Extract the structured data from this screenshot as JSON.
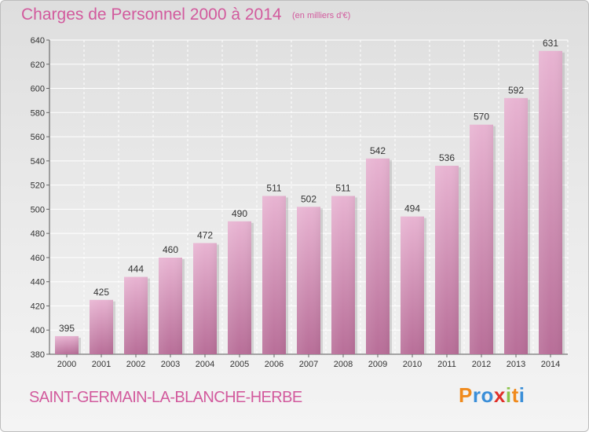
{
  "chart_data": {
    "type": "bar",
    "title": "Charges de Personnel 2000 à 2014",
    "subtitle": "(en milliers d'€)",
    "categories": [
      "2000",
      "2001",
      "2002",
      "2003",
      "2004",
      "2005",
      "2006",
      "2007",
      "2008",
      "2009",
      "2010",
      "2011",
      "2012",
      "2013",
      "2014"
    ],
    "values": [
      395,
      425,
      444,
      460,
      472,
      490,
      511,
      502,
      511,
      542,
      494,
      536,
      570,
      592,
      631
    ],
    "ylim": [
      380,
      640
    ],
    "yticks": [
      380,
      400,
      420,
      440,
      460,
      480,
      500,
      520,
      540,
      560,
      580,
      600,
      620,
      640
    ],
    "grid": true,
    "bar_color": "#d890b8"
  },
  "footer": {
    "commune": "SAINT-GERMAIN-LA-BLANCHE-HERBE",
    "logo_letters": [
      "P",
      "r",
      "o",
      "x",
      "i",
      "t",
      "i"
    ],
    "logo_colors": [
      "#f08a1c",
      "#3a8ed8",
      "#3a8ed8",
      "#e0302a",
      "#8bc34a",
      "#f08a1c",
      "#3a8ed8"
    ]
  }
}
